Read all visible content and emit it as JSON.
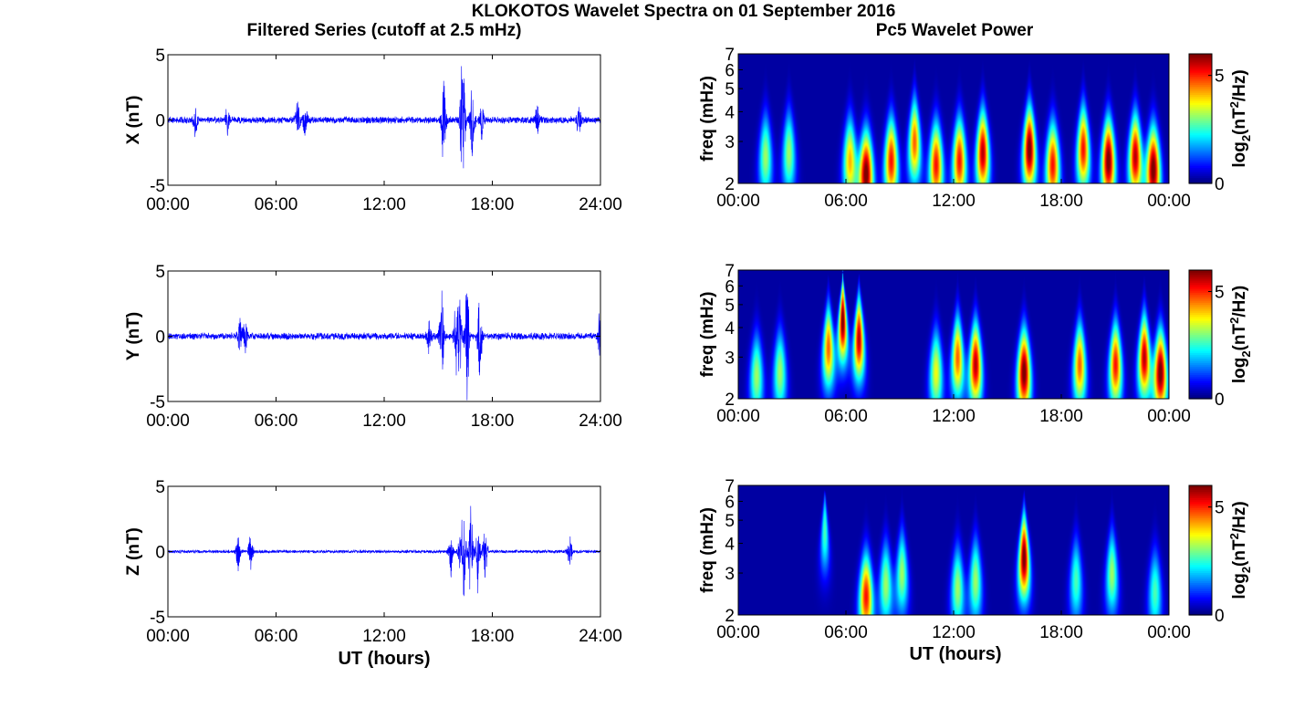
{
  "figure": {
    "title": "KLOKOTOS Wavelet Spectra on 01 September 2016",
    "left_column_title": "Filtered Series (cutoff at 2.5 mHz)",
    "right_column_title": "Pc5 Wavelet Power"
  },
  "chart_data": [
    {
      "type": "line",
      "panel": "X filtered series",
      "ylabel": "X (nT)",
      "xlabel": "",
      "xlim": [
        0,
        24
      ],
      "ylim": [
        -5,
        5
      ],
      "xticks": [
        "00:00",
        "06:00",
        "12:00",
        "18:00",
        "24:00"
      ],
      "yticks": [
        "-5",
        "0",
        "5"
      ],
      "line_color": "#0000ff",
      "baseline_amplitude": 0.25,
      "events": [
        {
          "t": 1.5,
          "amp": -1.3
        },
        {
          "t": 3.3,
          "amp": -1.1
        },
        {
          "t": 7.2,
          "amp": 1.4
        },
        {
          "t": 7.6,
          "amp": -1.2
        },
        {
          "t": 15.3,
          "amp": 3.0
        },
        {
          "t": 16.3,
          "amp": 2.4
        },
        {
          "t": 16.4,
          "amp": -3.7
        },
        {
          "t": 16.9,
          "amp": -2.5
        },
        {
          "t": 17.4,
          "amp": -1.5
        },
        {
          "t": 20.5,
          "amp": 1.1
        },
        {
          "t": 22.8,
          "amp": 1.0
        }
      ]
    },
    {
      "type": "heatmap",
      "panel": "X wavelet power",
      "ylabel": "freq (mHz)",
      "xlabel": "",
      "xlim": [
        0,
        24
      ],
      "ylim": [
        2,
        7
      ],
      "yscale": "log",
      "xticks": [
        "00:00",
        "06:00",
        "12:00",
        "18:00",
        "00:00"
      ],
      "yticks": [
        "2",
        "3",
        "4",
        "5",
        "6",
        "7"
      ],
      "colorbar": {
        "label_base": "log",
        "label_sub": "2",
        "label_mid": "(nT",
        "label_sup": "2",
        "label_end": "/Hz)",
        "ticks": [
          "0",
          "5"
        ],
        "range": [
          0,
          6
        ]
      },
      "blobs": [
        {
          "t": 1.5,
          "f": 2.6,
          "p": 3.0
        },
        {
          "t": 2.8,
          "f": 2.7,
          "p": 3.0
        },
        {
          "t": 6.2,
          "f": 2.5,
          "p": 4.0
        },
        {
          "t": 7.1,
          "f": 2.2,
          "p": 6.0
        },
        {
          "t": 8.5,
          "f": 2.5,
          "p": 5.0
        },
        {
          "t": 9.8,
          "f": 3.0,
          "p": 4.5
        },
        {
          "t": 11.0,
          "f": 2.4,
          "p": 5.0
        },
        {
          "t": 12.3,
          "f": 2.5,
          "p": 5.0
        },
        {
          "t": 13.6,
          "f": 2.7,
          "p": 5.5
        },
        {
          "t": 16.2,
          "f": 2.8,
          "p": 6.0
        },
        {
          "t": 17.5,
          "f": 2.4,
          "p": 5.0
        },
        {
          "t": 19.2,
          "f": 2.8,
          "p": 5.0
        },
        {
          "t": 20.6,
          "f": 2.5,
          "p": 6.0
        },
        {
          "t": 22.1,
          "f": 2.6,
          "p": 5.5
        },
        {
          "t": 23.1,
          "f": 2.3,
          "p": 6.0
        }
      ]
    },
    {
      "type": "line",
      "panel": "Y filtered series",
      "ylabel": "Y (nT)",
      "xlabel": "",
      "xlim": [
        0,
        24
      ],
      "ylim": [
        -5,
        5
      ],
      "xticks": [
        "00:00",
        "06:00",
        "12:00",
        "18:00",
        "24:00"
      ],
      "yticks": [
        "-5",
        "0",
        "5"
      ],
      "line_color": "#0000ff",
      "baseline_amplitude": 0.25,
      "events": [
        {
          "t": 4.0,
          "amp": 1.4
        },
        {
          "t": 4.3,
          "amp": -1.3
        },
        {
          "t": 14.5,
          "amp": 1.2
        },
        {
          "t": 15.2,
          "amp": 3.5
        },
        {
          "t": 16.0,
          "amp": -3.0
        },
        {
          "t": 16.2,
          "amp": 2.8
        },
        {
          "t": 16.6,
          "amp": -4.9
        },
        {
          "t": 17.3,
          "amp": -3.0
        },
        {
          "t": 24.0,
          "amp": 2.9
        }
      ]
    },
    {
      "type": "heatmap",
      "panel": "Y wavelet power",
      "ylabel": "freq (mHz)",
      "xlabel": "",
      "xlim": [
        0,
        24
      ],
      "ylim": [
        2,
        7
      ],
      "yscale": "log",
      "xticks": [
        "00:00",
        "06:00",
        "12:00",
        "18:00",
        "00:00"
      ],
      "yticks": [
        "2",
        "3",
        "4",
        "5",
        "6",
        "7"
      ],
      "colorbar": {
        "label_base": "log",
        "label_sub": "2",
        "label_mid": "(nT",
        "label_sup": "2",
        "label_end": "/Hz)",
        "ticks": [
          "0",
          "5"
        ],
        "range": [
          0,
          6
        ]
      },
      "blobs": [
        {
          "t": 1.0,
          "f": 2.5,
          "p": 3.0
        },
        {
          "t": 2.3,
          "f": 2.6,
          "p": 3.0
        },
        {
          "t": 5.0,
          "f": 3.3,
          "p": 4.5
        },
        {
          "t": 5.8,
          "f": 4.3,
          "p": 6.0
        },
        {
          "t": 6.7,
          "f": 3.6,
          "p": 5.5
        },
        {
          "t": 11.0,
          "f": 2.6,
          "p": 3.5
        },
        {
          "t": 12.2,
          "f": 3.0,
          "p": 4.5
        },
        {
          "t": 13.2,
          "f": 2.8,
          "p": 5.5
        },
        {
          "t": 15.9,
          "f": 2.6,
          "p": 6.0
        },
        {
          "t": 19.0,
          "f": 2.8,
          "p": 4.5
        },
        {
          "t": 21.0,
          "f": 2.8,
          "p": 5.0
        },
        {
          "t": 22.6,
          "f": 3.0,
          "p": 5.5
        },
        {
          "t": 23.5,
          "f": 2.6,
          "p": 6.0
        }
      ]
    },
    {
      "type": "line",
      "panel": "Z filtered series",
      "ylabel": "Z (nT)",
      "xlabel": "UT (hours)",
      "xlim": [
        0,
        24
      ],
      "ylim": [
        -5,
        5
      ],
      "xticks": [
        "00:00",
        "06:00",
        "12:00",
        "18:00",
        "24:00"
      ],
      "yticks": [
        "-5",
        "0",
        "5"
      ],
      "line_color": "#0000ff",
      "baseline_amplitude": 0.12,
      "events": [
        {
          "t": 3.9,
          "amp": -1.5
        },
        {
          "t": 4.6,
          "amp": -1.4
        },
        {
          "t": 15.7,
          "amp": -1.8
        },
        {
          "t": 16.2,
          "amp": 1.1
        },
        {
          "t": 16.4,
          "amp": -3.3
        },
        {
          "t": 16.8,
          "amp": 3.5
        },
        {
          "t": 17.2,
          "amp": -3.2
        },
        {
          "t": 17.6,
          "amp": -2.0
        },
        {
          "t": 22.3,
          "amp": -1.0
        }
      ]
    },
    {
      "type": "heatmap",
      "panel": "Z wavelet power",
      "ylabel": "freq (mHz)",
      "xlabel": "UT (hours)",
      "xlim": [
        0,
        24
      ],
      "ylim": [
        2,
        7
      ],
      "yscale": "log",
      "xticks": [
        "00:00",
        "06:00",
        "12:00",
        "18:00",
        "00:00"
      ],
      "yticks": [
        "2",
        "3",
        "4",
        "5",
        "6",
        "7"
      ],
      "colorbar": {
        "label_base": "log",
        "label_sub": "2",
        "label_mid": "(nT",
        "label_sup": "2",
        "label_end": "/Hz)",
        "ticks": [
          "0",
          "5"
        ],
        "range": [
          0,
          6
        ]
      },
      "blobs": [
        {
          "t": 4.8,
          "f": 4.5,
          "p": 2.5
        },
        {
          "t": 7.1,
          "f": 2.4,
          "p": 5.0
        },
        {
          "t": 8.2,
          "f": 2.7,
          "p": 3.0
        },
        {
          "t": 9.1,
          "f": 3.0,
          "p": 3.0
        },
        {
          "t": 12.2,
          "f": 2.6,
          "p": 3.0
        },
        {
          "t": 13.2,
          "f": 2.8,
          "p": 3.0
        },
        {
          "t": 15.9,
          "f": 3.5,
          "p": 6.0
        },
        {
          "t": 18.8,
          "f": 2.8,
          "p": 2.5
        },
        {
          "t": 20.8,
          "f": 3.0,
          "p": 3.0
        },
        {
          "t": 23.2,
          "f": 2.5,
          "p": 2.5
        }
      ]
    }
  ]
}
